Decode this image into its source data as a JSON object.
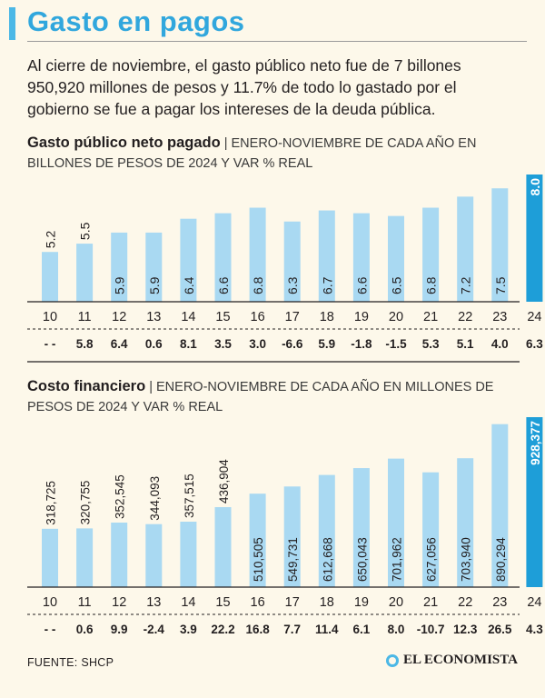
{
  "header": {
    "title": "Gasto en pagos",
    "intro": "Al cierre de noviembre, el gasto público neto fue de 7 billones 950,920 millones de pesos y 11.7% de todo lo gastado por el gobierno se fue a pagar los intereses de la deuda pública."
  },
  "colors": {
    "title": "#31a7dd",
    "bar": "#a9d9f2",
    "bar_highlight": "#1e9ed8",
    "background": "#fdf8ea"
  },
  "chart_data": [
    {
      "type": "bar",
      "title": "Gasto público neto pagado",
      "subtitle": "| ENERO-NOVIEMBRE DE CADA AÑO EN BILLONES DE PESOS DE 2024 Y VAR % REAL",
      "categories": [
        "10",
        "11",
        "12",
        "13",
        "14",
        "15",
        "16",
        "17",
        "18",
        "19",
        "20",
        "21",
        "22",
        "23",
        "24"
      ],
      "values": [
        5.2,
        5.5,
        5.9,
        5.9,
        6.4,
        6.6,
        6.8,
        6.3,
        6.7,
        6.6,
        6.5,
        6.8,
        7.2,
        7.5,
        8.0
      ],
      "labels": [
        "5.2",
        "5.5",
        "5.9",
        "5.9",
        "6.4",
        "6.6",
        "6.8",
        "6.3",
        "6.7",
        "6.6",
        "6.5",
        "6.8",
        "7.2",
        "7.5",
        "8.0"
      ],
      "var_pct": [
        "- -",
        "5.8",
        "6.4",
        "0.6",
        "8.1",
        "3.5",
        "3.0",
        "-6.6",
        "5.9",
        "-1.8",
        "-1.5",
        "5.3",
        "5.1",
        "4.0",
        "6.3"
      ],
      "highlight_index": 14,
      "ylim": [
        3.4,
        8.0
      ]
    },
    {
      "type": "bar",
      "title": "Costo financiero",
      "subtitle": "| ENERO-NOVIEMBRE DE CADA AÑO EN MILLONES DE PESOS DE 2024 Y VAR % REAL",
      "categories": [
        "10",
        "11",
        "12",
        "13",
        "14",
        "15",
        "16",
        "17",
        "18",
        "19",
        "20",
        "21",
        "22",
        "23",
        "24"
      ],
      "values": [
        318725,
        320755,
        352545,
        344093,
        357515,
        436904,
        510505,
        549731,
        612668,
        650043,
        701962,
        627056,
        703940,
        890294,
        928377
      ],
      "labels": [
        "318,725",
        "320,755",
        "352,545",
        "344,093",
        "357,515",
        "436,904",
        "510,505",
        "549,731",
        "612,668",
        "650,043",
        "701,962",
        "627,056",
        "703,940",
        "890,294",
        "928,377"
      ],
      "var_pct": [
        "- -",
        "0.6",
        "9.9",
        "-2.4",
        "3.9",
        "22.2",
        "16.8",
        "7.7",
        "11.4",
        "6.1",
        "8.0",
        "-10.7",
        "12.3",
        "26.5",
        "4.3"
      ],
      "highlight_index": 14,
      "ylim": [
        0,
        928377
      ]
    }
  ],
  "footer": {
    "source": "FUENTE: SHCP",
    "brand": "EL ECONOMISTA"
  }
}
